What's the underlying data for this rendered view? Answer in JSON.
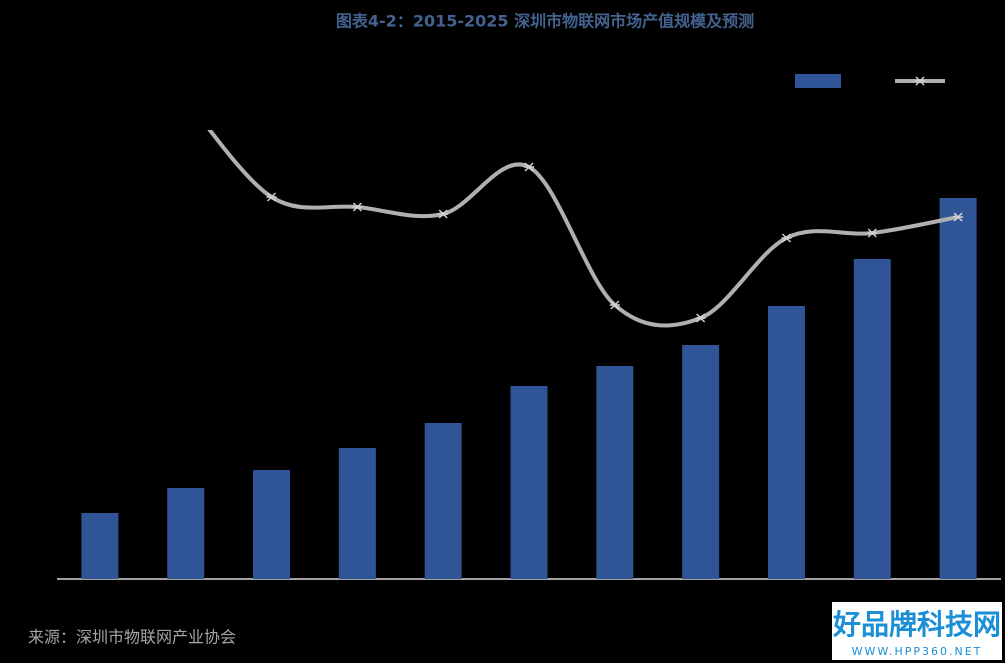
{
  "chart_data": {
    "type": "combo",
    "title": "图表4-2：2015-2025 深圳市物联网市场产值规模及预测",
    "categories": [
      null,
      null,
      null,
      null,
      null,
      null,
      null,
      null,
      null,
      null,
      null
    ],
    "series": [
      {
        "type": "bar",
        "color": "#2f5597",
        "values": [
          66,
          91,
          109,
          131,
          156,
          193,
          213,
          234,
          273,
          320,
          381
        ]
      },
      {
        "type": "line",
        "color": "#b0b0b0",
        "axis": "y2",
        "values": [
          null,
          480,
          382,
          372,
          365,
          412,
          274,
          261,
          341,
          346,
          362
        ]
      }
    ],
    "ylim": [
      0,
      500
    ],
    "y2lim": [
      0,
      500
    ],
    "grid": false,
    "legend": "top-right",
    "source": "来源：深圳市物联网产业协会",
    "watermark": {
      "title": "好品牌科技网",
      "url": "WWW.HPP360.NET"
    }
  }
}
